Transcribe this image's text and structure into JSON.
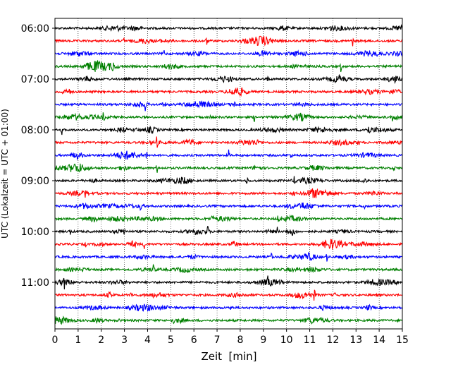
{
  "chart_data": {
    "type": "line",
    "title": "",
    "xlabel": "Zeit  [min]",
    "ylabel": "UTC (Lokalzeit = UTC + 01:00)",
    "xlim": [
      0,
      15
    ],
    "x_ticks": [
      "0",
      "1",
      "2",
      "3",
      "4",
      "5",
      "6",
      "7",
      "8",
      "9",
      "10",
      "11",
      "12",
      "13",
      "14",
      "15"
    ],
    "y_ticks": [
      "06:00",
      "07:00",
      "08:00",
      "09:00",
      "10:00",
      "11:00"
    ],
    "trace_interval_minutes": 15,
    "start_time": "06:00",
    "trace_count": 24,
    "color_cycle": [
      "#000000",
      "#ff0000",
      "#0000ff",
      "#008000"
    ],
    "grid": "vertical dotted lines at each minute",
    "series": [
      {
        "start": "06:00",
        "color": "#000000",
        "events": []
      },
      {
        "start": "06:15",
        "color": "#ff0000",
        "events": [
          3.0,
          6.55,
          12.85
        ]
      },
      {
        "start": "06:30",
        "color": "#0000ff",
        "events": [
          4.7
        ]
      },
      {
        "start": "06:45",
        "color": "#008000",
        "events": [
          2.5,
          12.35
        ]
      },
      {
        "start": "07:00",
        "color": "#000000",
        "events": [
          9.2
        ]
      },
      {
        "start": "07:15",
        "color": "#ff0000",
        "events": [
          0.6
        ]
      },
      {
        "start": "07:30",
        "color": "#0000ff",
        "events": [
          3.9
        ]
      },
      {
        "start": "07:45",
        "color": "#008000",
        "events": [
          2.1,
          6.7,
          8.6,
          14.55
        ]
      },
      {
        "start": "08:00",
        "color": "#000000",
        "events": [
          0.3,
          13.55
        ]
      },
      {
        "start": "08:15",
        "color": "#ff0000",
        "events": [
          4.4,
          13.1
        ]
      },
      {
        "start": "08:30",
        "color": "#0000ff",
        "events": [
          3.95,
          7.5,
          10.2
        ]
      },
      {
        "start": "08:45",
        "color": "#008000",
        "events": [
          4.4,
          14.65
        ]
      },
      {
        "start": "09:00",
        "color": "#000000",
        "events": [
          8.3,
          10.35
        ]
      },
      {
        "start": "09:15",
        "color": "#ff0000",
        "events": [
          1.3,
          10.3
        ]
      },
      {
        "start": "09:30",
        "color": "#0000ff",
        "events": [
          3.7,
          13.35
        ]
      },
      {
        "start": "09:45",
        "color": "#008000",
        "events": [
          6.8,
          9.65
        ]
      },
      {
        "start": "10:00",
        "color": "#000000",
        "events": [
          0.65,
          3.0,
          6.6,
          9.6
        ]
      },
      {
        "start": "10:15",
        "color": "#ff0000",
        "events": [
          1.3,
          3.85
        ]
      },
      {
        "start": "10:30",
        "color": "#0000ff",
        "events": [
          9.35,
          11.75
        ]
      },
      {
        "start": "10:45",
        "color": "#008000",
        "events": [
          4.25
        ]
      },
      {
        "start": "11:00",
        "color": "#000000",
        "events": [
          0.4,
          9.2
        ]
      },
      {
        "start": "11:15",
        "color": "#ff0000",
        "events": [
          3.3,
          11.2,
          12.1
        ]
      },
      {
        "start": "11:30",
        "color": "#0000ff",
        "events": [
          7.6
        ]
      },
      {
        "start": "11:45",
        "color": "#008000",
        "events": [
          2.8,
          5.1
        ]
      }
    ]
  }
}
